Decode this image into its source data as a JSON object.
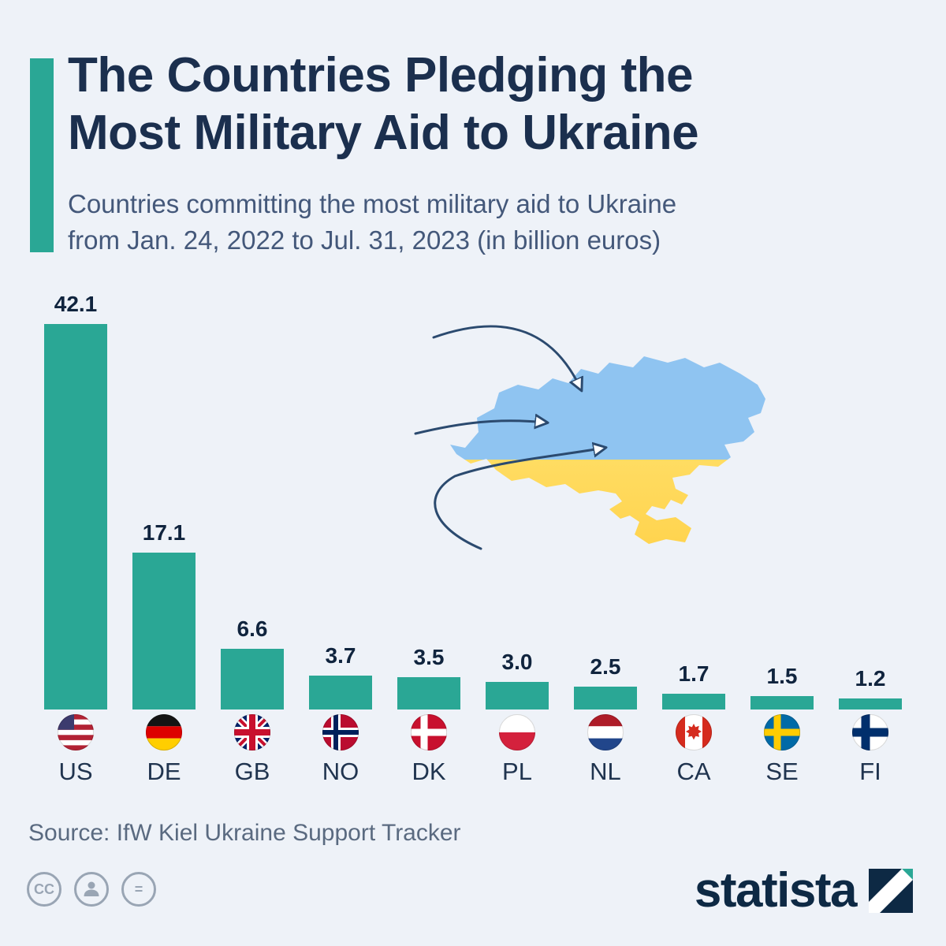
{
  "header": {
    "title_line1": "The Countries Pledging the",
    "title_line2": "Most Military Aid to Ukraine",
    "subtitle_line1": "Countries committing the most military aid to Ukraine",
    "subtitle_line2": "from Jan. 24, 2022 to Jul. 31, 2023 (in billion euros)"
  },
  "chart_data": {
    "type": "bar",
    "title": "The Countries Pledging the Most Military Aid to Ukraine",
    "subtitle": "Countries committing the most military aid to Ukraine from Jan. 24, 2022 to Jul. 31, 2023 (in billion euros)",
    "categories": [
      "US",
      "DE",
      "GB",
      "NO",
      "DK",
      "PL",
      "NL",
      "CA",
      "SE",
      "FI"
    ],
    "values": [
      42.1,
      17.1,
      6.6,
      3.7,
      3.5,
      3.0,
      2.5,
      1.7,
      1.5,
      1.2
    ],
    "value_labels": [
      "42.1",
      "17.1",
      "6.6",
      "3.7",
      "3.5",
      "3.0",
      "2.5",
      "1.7",
      "1.5",
      "1.2"
    ],
    "unit": "billion euros",
    "bar_color": "#2aa795",
    "ylim": [
      0,
      45
    ],
    "grid": false,
    "legend": "none",
    "flag_icons": [
      "flag-us-icon",
      "flag-de-icon",
      "flag-gb-icon",
      "flag-no-icon",
      "flag-dk-icon",
      "flag-pl-icon",
      "flag-nl-icon",
      "flag-ca-icon",
      "flag-se-icon",
      "flag-fi-icon"
    ]
  },
  "map": {
    "name": "ukraine-map",
    "top_color": "#8fc4f1",
    "bottom_color": "#ffdc62",
    "arrow_color": "#2b4a6f"
  },
  "footer": {
    "source": "Source: IfW Kiel Ukraine Support Tracker",
    "cc_glyph": "CC",
    "nd_glyph": "=",
    "brand": "statista"
  },
  "colors": {
    "background": "#eef2f8",
    "accent": "#2aa795",
    "title": "#1b2f4e",
    "subtitle": "#44587a",
    "value_label": "#10243e",
    "code_label": "#20344f",
    "source": "#5a6a80",
    "brand": "#0d2944"
  }
}
